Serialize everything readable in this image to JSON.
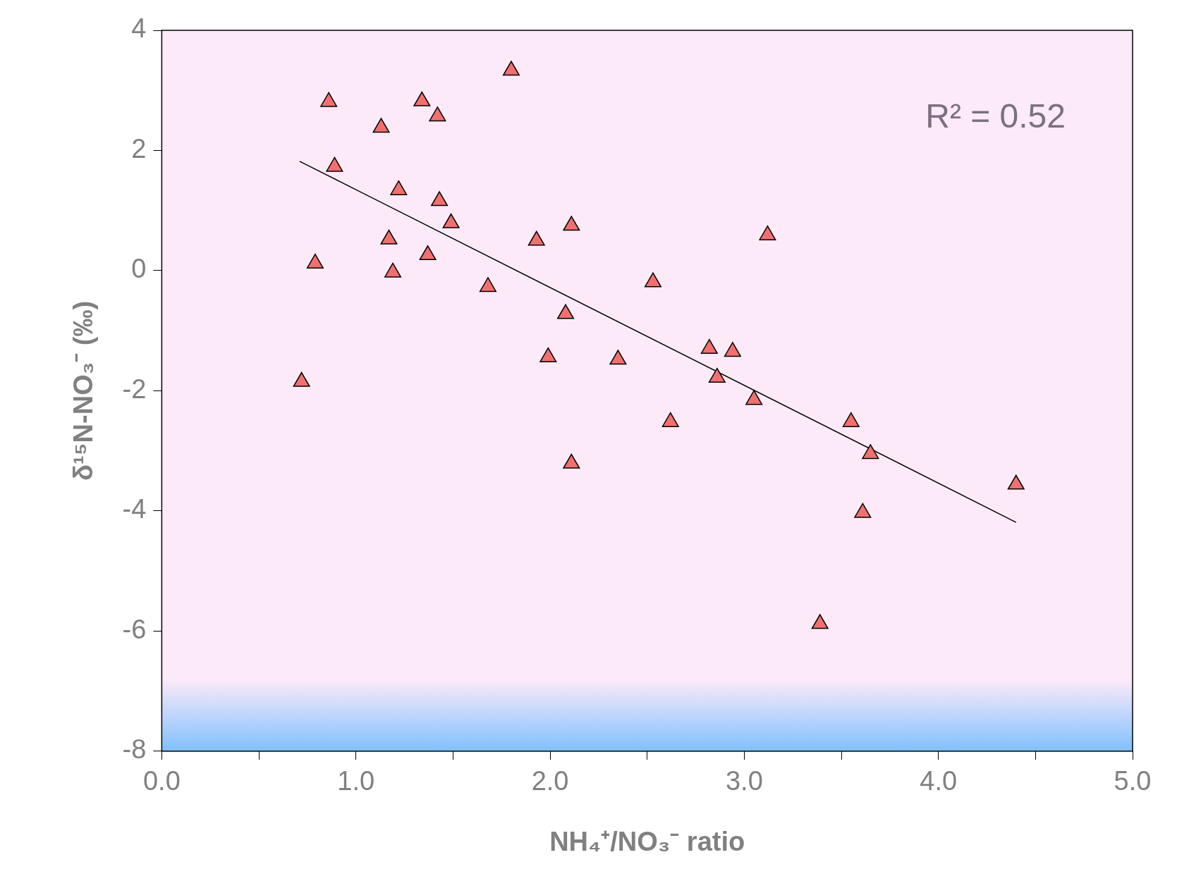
{
  "chart_data": {
    "type": "scatter",
    "xlabel": "NH₄⁺/NO₃⁻ ratio",
    "ylabel": "δ¹⁵N-NO₃⁻ (‰)",
    "annotations": [
      "R² = 0.52"
    ],
    "xlim": [
      0,
      5
    ],
    "xticks": [
      {
        "value": 0,
        "label": "0.0"
      },
      {
        "value": 0.5,
        "label": null
      },
      {
        "value": 1,
        "label": "1.0"
      },
      {
        "value": 1.5,
        "label": null
      },
      {
        "value": 2,
        "label": "2.0"
      },
      {
        "value": 2.5,
        "label": null
      },
      {
        "value": 3,
        "label": "3.0"
      },
      {
        "value": 3.5,
        "label": null
      },
      {
        "value": 4,
        "label": "4.0"
      },
      {
        "value": 4.5,
        "label": null
      },
      {
        "value": 5,
        "label": "5.0"
      }
    ],
    "ylim": [
      -8,
      4
    ],
    "yticks": [
      -8,
      -6,
      -4,
      -2,
      0,
      2,
      4
    ],
    "grid": false,
    "legend": false,
    "marker": "triangle",
    "series": [
      {
        "type": "scatter",
        "color": "#f07070",
        "x": [
          0.72,
          0.79,
          0.86,
          0.89,
          1.13,
          1.17,
          1.19,
          1.22,
          1.34,
          1.37,
          1.42,
          1.43,
          1.49,
          1.68,
          1.8,
          1.93,
          1.99,
          2.08,
          2.11,
          2.11,
          2.35,
          2.53,
          2.62,
          2.82,
          2.86,
          2.94,
          3.05,
          3.12,
          3.39,
          3.55,
          3.61,
          3.65,
          4.4
        ],
        "values": [
          -1.85,
          0.12,
          2.81,
          1.73,
          2.38,
          0.52,
          -0.03,
          1.34,
          2.82,
          0.26,
          2.57,
          1.16,
          0.79,
          -0.27,
          3.33,
          0.5,
          -1.44,
          -0.72,
          0.75,
          -3.21,
          -1.48,
          -0.19,
          -2.52,
          -1.3,
          -1.78,
          -1.35,
          -2.15,
          0.59,
          -5.88,
          -2.52,
          -4.03,
          -3.05,
          -3.56
        ]
      },
      {
        "type": "line",
        "color": "#000000",
        "marker": "none",
        "line_style": "solid",
        "x": [
          0.71,
          4.4
        ],
        "values": [
          1.82,
          -4.19
        ]
      }
    ]
  }
}
